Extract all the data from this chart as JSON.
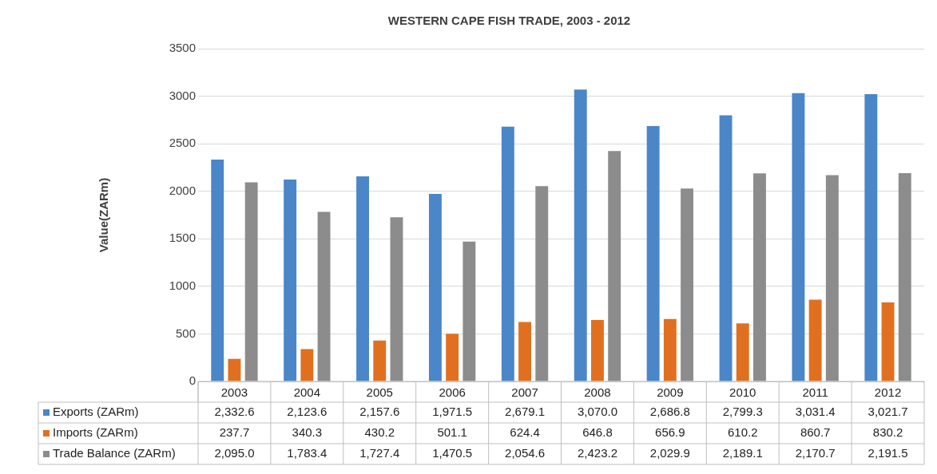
{
  "chart_data": {
    "type": "bar",
    "title": "WESTERN CAPE FISH TRADE, 2003 - 2012",
    "ylabel": "Value(ZARm)",
    "categories": [
      "2003",
      "2004",
      "2005",
      "2006",
      "2007",
      "2008",
      "2009",
      "2010",
      "2011",
      "2012"
    ],
    "series": [
      {
        "name": "Exports (ZARm)",
        "color": "#4a86c8",
        "values": [
          2332.6,
          2123.6,
          2157.6,
          1971.5,
          2679.1,
          3070.0,
          2686.8,
          2799.3,
          3031.4,
          3021.7
        ],
        "value_labels": [
          "2,332.6",
          "2,123.6",
          "2,157.6",
          "1,971.5",
          "2,679.1",
          "3,070.0",
          "2,686.8",
          "2,799.3",
          "3,031.4",
          "3,021.7"
        ]
      },
      {
        "name": "Imports (ZARm)",
        "color": "#e07020",
        "values": [
          237.7,
          340.3,
          430.2,
          501.1,
          624.4,
          646.8,
          656.9,
          610.2,
          860.7,
          830.2
        ],
        "value_labels": [
          "237.7",
          "340.3",
          "430.2",
          "501.1",
          "624.4",
          "646.8",
          "656.9",
          "610.2",
          "860.7",
          "830.2"
        ]
      },
      {
        "name": "Trade Balance (ZARm)",
        "color": "#8c8c8c",
        "values": [
          2095.0,
          1783.4,
          1727.4,
          1470.5,
          2054.6,
          2423.2,
          2029.9,
          2189.1,
          2170.7,
          2191.5
        ],
        "value_labels": [
          "2,095.0",
          "1,783.4",
          "1,727.4",
          "1,470.5",
          "2,054.6",
          "2,423.2",
          "2,029.9",
          "2,189.1",
          "2,170.7",
          "2,191.5"
        ]
      }
    ],
    "ylim": [
      0,
      3500
    ],
    "yticks": [
      0,
      500,
      1000,
      1500,
      2000,
      2500,
      3000,
      3500
    ],
    "grid": "y",
    "legend": "bottom"
  }
}
